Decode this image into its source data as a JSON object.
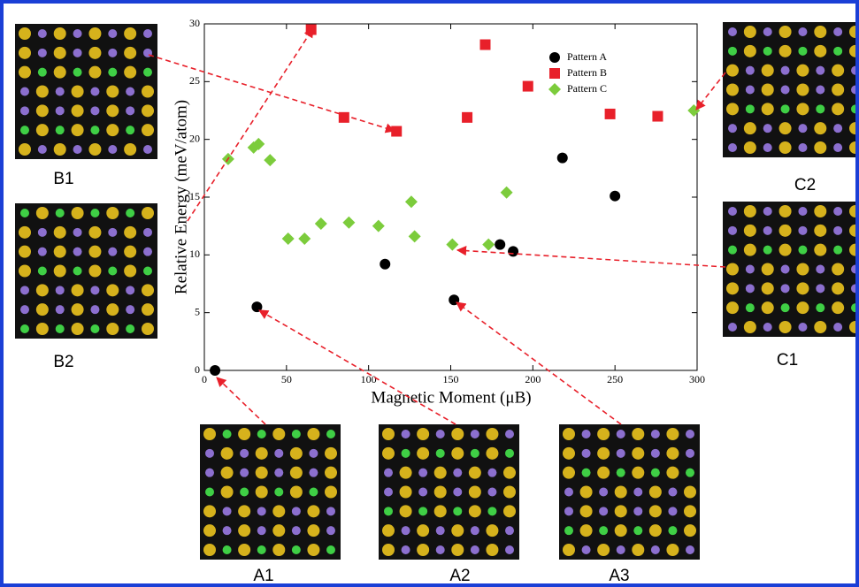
{
  "chart_data": {
    "type": "scatter",
    "xlabel": "Magnetic Moment (μB)",
    "ylabel": "Relative Energy (meV/atom)",
    "xlim": [
      0,
      300
    ],
    "ylim": [
      0,
      30
    ],
    "xticks": [
      0,
      50,
      100,
      150,
      200,
      250,
      300
    ],
    "yticks": [
      0,
      5,
      10,
      15,
      20,
      25,
      30
    ],
    "legend": "upper right",
    "series": [
      {
        "name": "Pattern A",
        "color": "#000000",
        "marker": "circle",
        "x": [
          6.5,
          32,
          110,
          152,
          180,
          188,
          218,
          250
        ],
        "y": [
          0,
          5.5,
          9.2,
          6.1,
          10.9,
          10.3,
          18.4,
          15.1
        ]
      },
      {
        "name": "Pattern B",
        "color": "#e8202a",
        "marker": "square",
        "x": [
          65,
          85,
          117,
          160,
          171,
          197,
          247,
          276
        ],
        "y": [
          29.5,
          21.9,
          20.7,
          21.9,
          28.2,
          24.6,
          22.2,
          22.0
        ]
      },
      {
        "name": "Pattern C",
        "color": "#7ccc3c",
        "marker": "diamond",
        "x": [
          14.5,
          30,
          33,
          40,
          51,
          61,
          71,
          88,
          106,
          126,
          128,
          151,
          173,
          184,
          298
        ],
        "y": [
          18.3,
          19.3,
          19.6,
          18.2,
          11.4,
          11.4,
          12.7,
          12.8,
          12.5,
          14.6,
          11.6,
          10.9,
          10.9,
          15.4,
          22.5
        ]
      }
    ]
  },
  "insets": [
    {
      "label": "B1"
    },
    {
      "label": "B2"
    },
    {
      "label": "C2"
    },
    {
      "label": "C1"
    },
    {
      "label": "A1"
    },
    {
      "label": "A2"
    },
    {
      "label": "A3"
    }
  ]
}
